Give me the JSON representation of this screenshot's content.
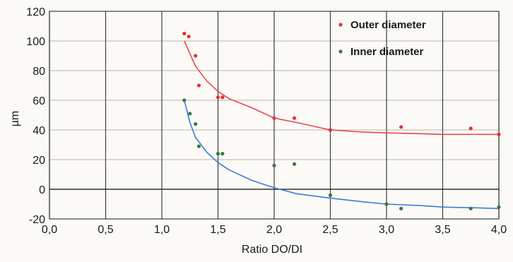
{
  "chart_data": {
    "type": "scatter",
    "title": "",
    "xlabel": "Ratio DO/DI",
    "ylabel": "µm",
    "xlim": [
      0,
      4
    ],
    "ylim": [
      -20,
      120
    ],
    "x_ticks": [
      0,
      0.5,
      1,
      1.5,
      2,
      2.5,
      3,
      3.5,
      4
    ],
    "x_tick_labels": [
      "0,0",
      "0,5",
      "1,0",
      "1,5",
      "2,0",
      "2,5",
      "3,0",
      "3,5",
      "4,0"
    ],
    "y_ticks": [
      -20,
      0,
      20,
      40,
      60,
      80,
      100,
      120
    ],
    "y_tick_labels": [
      "-20",
      "0",
      "20",
      "40",
      "60",
      "80",
      "100",
      "120"
    ],
    "grid": true,
    "legend_position": "top-right",
    "series": [
      {
        "name": "Outer diameter",
        "color": "#e0323a",
        "points": [
          [
            1.2,
            105
          ],
          [
            1.24,
            103
          ],
          [
            1.3,
            90
          ],
          [
            1.33,
            70
          ],
          [
            1.5,
            62
          ],
          [
            1.54,
            62
          ],
          [
            2.0,
            48
          ],
          [
            2.18,
            48
          ],
          [
            2.5,
            40
          ],
          [
            3.13,
            42
          ],
          [
            3.75,
            41
          ],
          [
            4.0,
            37
          ]
        ],
        "trend": [
          [
            1.2,
            100
          ],
          [
            1.3,
            83
          ],
          [
            1.4,
            73
          ],
          [
            1.5,
            66
          ],
          [
            1.6,
            61
          ],
          [
            1.8,
            55
          ],
          [
            2.0,
            48
          ],
          [
            2.2,
            45
          ],
          [
            2.5,
            40
          ],
          [
            2.8,
            38.5
          ],
          [
            3.0,
            38
          ],
          [
            3.3,
            37.5
          ],
          [
            3.5,
            37
          ],
          [
            3.8,
            37
          ],
          [
            4.0,
            37
          ]
        ]
      },
      {
        "name": "Inner diameter",
        "color": "#3a7a3a",
        "points": [
          [
            1.2,
            60
          ],
          [
            1.25,
            51
          ],
          [
            1.3,
            44
          ],
          [
            1.33,
            29
          ],
          [
            1.5,
            24
          ],
          [
            1.54,
            24
          ],
          [
            2.0,
            16
          ],
          [
            2.18,
            17
          ],
          [
            2.5,
            -4
          ],
          [
            3.0,
            -10
          ],
          [
            3.13,
            -13
          ],
          [
            3.75,
            -13
          ],
          [
            4.0,
            -12
          ]
        ],
        "trend": [
          [
            1.2,
            60
          ],
          [
            1.25,
            45
          ],
          [
            1.3,
            35
          ],
          [
            1.4,
            25
          ],
          [
            1.5,
            18
          ],
          [
            1.6,
            13
          ],
          [
            1.8,
            6
          ],
          [
            2.0,
            1
          ],
          [
            2.2,
            -3
          ],
          [
            2.5,
            -6
          ],
          [
            2.8,
            -8.5
          ],
          [
            3.0,
            -10
          ],
          [
            3.3,
            -11
          ],
          [
            3.5,
            -12
          ],
          [
            3.8,
            -12.5
          ],
          [
            4.0,
            -13
          ]
        ]
      }
    ],
    "trend_color": "#3b7dd8",
    "outer_trend_color": "#e8484f"
  }
}
